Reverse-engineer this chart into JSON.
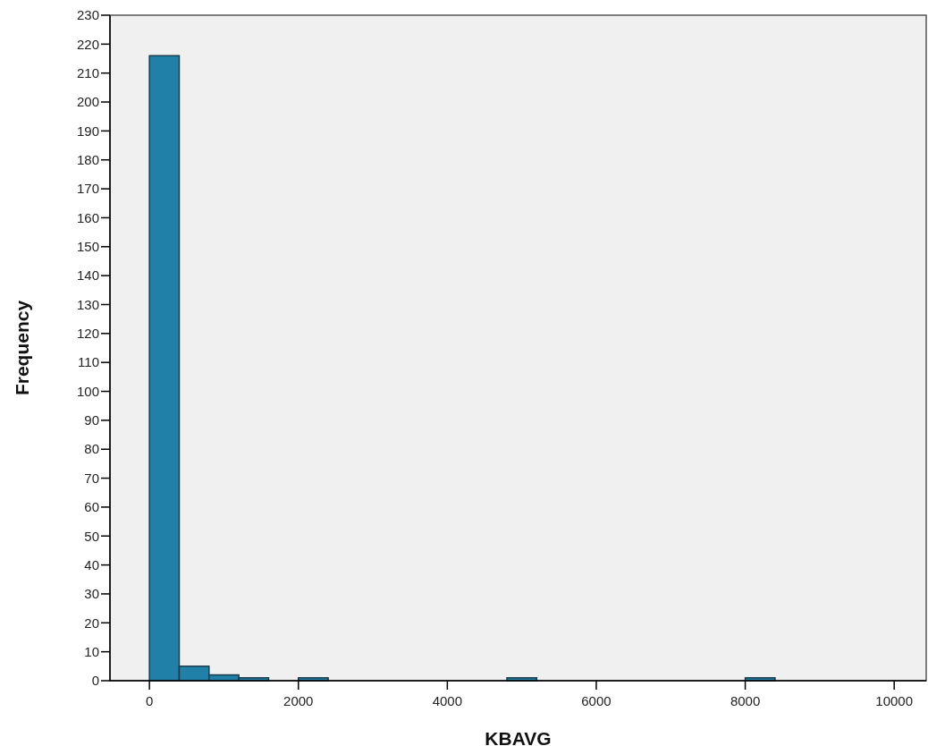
{
  "chart_data": {
    "type": "histogram",
    "xlabel": "KBAVG",
    "ylabel": "Frequency",
    "bins": [
      0,
      400,
      800,
      1200,
      1600,
      2000,
      2400,
      2800,
      3200,
      3600,
      4000,
      4400,
      4800,
      5200,
      5600,
      6000,
      6400,
      6800,
      7200,
      7600,
      8000,
      8400
    ],
    "values": [
      216,
      5,
      2,
      1,
      0,
      1,
      0,
      0,
      0,
      0,
      0,
      0,
      1,
      0,
      0,
      0,
      0,
      0,
      0,
      0,
      1
    ],
    "color": "#2180a8",
    "xlim": [
      -530,
      10430
    ],
    "xticks": [
      0,
      2000,
      4000,
      6000,
      8000,
      10000
    ],
    "ylim": [
      0,
      230
    ],
    "yticks": [
      0,
      10,
      20,
      30,
      40,
      50,
      60,
      70,
      80,
      90,
      100,
      110,
      120,
      130,
      140,
      150,
      160,
      170,
      180,
      190,
      200,
      210,
      220,
      230
    ],
    "grid": false
  }
}
